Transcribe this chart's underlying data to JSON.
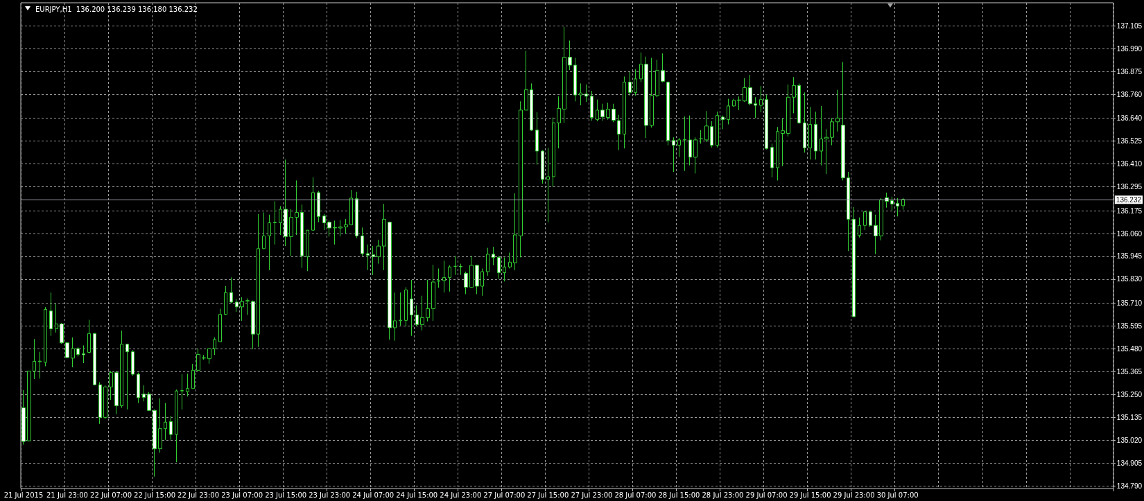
{
  "chart_data": {
    "type": "candlestick",
    "title": "EURJPY,H1  136.200 136.239 136.180 136.232",
    "color": "#32cd32",
    "categories": [
      "21 Jul 2015",
      null,
      null,
      null,
      null,
      null,
      null,
      null,
      "21 Jul 23:00",
      null,
      null,
      null,
      null,
      null,
      null,
      null,
      "22 Jul 07:00",
      null,
      null,
      null,
      null,
      null,
      null,
      null,
      "22 Jul 15:00",
      null,
      null,
      null,
      null,
      null,
      null,
      null,
      "22 Jul 23:00",
      null,
      null,
      null,
      null,
      null,
      null,
      null,
      "23 Jul 07:00",
      null,
      null,
      null,
      null,
      null,
      null,
      null,
      "23 Jul 15:00",
      null,
      null,
      null,
      null,
      null,
      null,
      null,
      "23 Jul 23:00",
      null,
      null,
      null,
      null,
      null,
      null,
      null,
      "24 Jul 07:00",
      null,
      null,
      null,
      null,
      null,
      null,
      null,
      "24 Jul 15:00",
      null,
      null,
      null,
      null,
      null,
      null,
      null,
      "24 Jul 23:00",
      null,
      null,
      null,
      null,
      null,
      null,
      null,
      "27 Jul 07:00",
      null,
      null,
      null,
      null,
      null,
      null,
      null,
      "27 Jul 15:00",
      null,
      null,
      null,
      null,
      null,
      null,
      null,
      "27 Jul 23:00",
      null,
      null,
      null,
      null,
      null,
      null,
      null,
      "28 Jul 07:00",
      null,
      null,
      null,
      null,
      null,
      null,
      null,
      "28 Jul 15:00",
      null,
      null,
      null,
      null,
      null,
      null,
      null,
      "28 Jul 23:00",
      null,
      null,
      null,
      null,
      null,
      null,
      null,
      "29 Jul 07:00",
      null,
      null,
      null,
      null,
      null,
      null,
      null,
      "29 Jul 15:00",
      null,
      null,
      null,
      null,
      null,
      null,
      null,
      "29 Jul 23:00",
      null,
      null,
      null,
      null,
      null,
      null,
      null,
      "30 Jul 07:00",
      null,
      null,
      null,
      null,
      null,
      null,
      null,
      null,
      null,
      null,
      null,
      null,
      null,
      null,
      null,
      null,
      null,
      null,
      null,
      null,
      null,
      null,
      null,
      null,
      null,
      null,
      null,
      null,
      null,
      null,
      null,
      null,
      null,
      null,
      null,
      null,
      null,
      null,
      null
    ],
    "ohlc": [
      [
        135.183,
        135.272,
        134.998,
        135.014
      ],
      [
        135.017,
        135.37,
        135.015,
        135.368
      ],
      [
        135.368,
        135.529,
        135.328,
        135.417
      ],
      [
        135.415,
        135.465,
        135.33,
        135.418
      ],
      [
        135.412,
        135.69,
        135.392,
        135.678
      ],
      [
        135.67,
        135.763,
        135.545,
        135.581
      ],
      [
        135.581,
        135.707,
        135.562,
        135.605
      ],
      [
        135.605,
        135.61,
        135.505,
        135.51
      ],
      [
        135.51,
        135.513,
        135.433,
        135.436
      ],
      [
        135.433,
        135.537,
        135.387,
        135.481
      ],
      [
        135.481,
        135.489,
        135.441,
        135.452
      ],
      [
        135.455,
        135.497,
        135.408,
        135.45
      ],
      [
        135.462,
        135.626,
        135.457,
        135.557
      ],
      [
        135.557,
        135.56,
        135.296,
        135.299
      ],
      [
        135.299,
        135.312,
        135.102,
        135.135
      ],
      [
        135.135,
        135.296,
        135.127,
        135.288
      ],
      [
        135.288,
        135.368,
        135.223,
        135.36
      ],
      [
        135.36,
        135.368,
        135.151,
        135.194
      ],
      [
        135.194,
        135.572,
        135.183,
        135.503
      ],
      [
        135.503,
        135.505,
        135.175,
        135.465
      ],
      [
        135.465,
        135.473,
        135.344,
        135.352
      ],
      [
        135.352,
        135.36,
        135.207,
        135.234
      ],
      [
        135.252,
        135.296,
        135.215,
        135.236
      ],
      [
        135.252,
        135.263,
        135.167,
        135.17
      ],
      [
        135.17,
        135.175,
        134.837,
        134.977
      ],
      [
        134.977,
        135.231,
        134.957,
        135.078
      ],
      [
        135.078,
        135.207,
        135.022,
        135.111
      ],
      [
        135.114,
        135.143,
        135.022,
        135.049
      ],
      [
        135.049,
        135.275,
        134.909,
        135.268
      ],
      [
        135.268,
        135.352,
        135.175,
        135.27
      ],
      [
        135.264,
        135.355,
        135.24,
        135.28
      ],
      [
        135.28,
        135.404,
        135.28,
        135.372
      ],
      [
        135.372,
        135.481,
        135.368,
        135.452
      ],
      [
        135.435,
        135.449,
        135.425,
        135.433
      ],
      [
        135.43,
        135.484,
        135.405,
        135.481
      ],
      [
        135.481,
        135.537,
        135.449,
        135.526
      ],
      [
        135.516,
        135.682,
        135.513,
        135.653
      ],
      [
        135.653,
        135.795,
        135.65,
        135.763
      ],
      [
        135.763,
        135.839,
        135.71,
        135.715
      ],
      [
        135.715,
        135.731,
        135.666,
        135.691
      ],
      [
        135.691,
        135.739,
        135.621,
        135.718
      ],
      [
        135.72,
        135.734,
        135.65,
        135.723
      ],
      [
        135.718,
        135.723,
        135.478,
        135.554
      ],
      [
        135.554,
        136.158,
        135.489,
        135.984
      ],
      [
        135.984,
        136.166,
        135.981,
        136.048
      ],
      [
        136.048,
        136.155,
        135.876,
        136.114
      ],
      [
        136.114,
        136.222,
        136.005,
        136.116
      ],
      [
        136.114,
        136.198,
        136.053,
        136.182
      ],
      [
        136.182,
        136.432,
        135.997,
        136.045
      ],
      [
        136.045,
        136.182,
        135.948,
        136.142
      ],
      [
        136.142,
        136.327,
        136.053,
        136.166
      ],
      [
        136.166,
        136.206,
        135.887,
        135.948
      ],
      [
        135.944,
        136.077,
        135.871,
        136.077
      ],
      [
        136.077,
        136.343,
        136.074,
        136.266
      ],
      [
        136.266,
        136.274,
        136.117,
        136.145
      ],
      [
        136.148,
        136.158,
        136.077,
        136.114
      ],
      [
        136.117,
        136.125,
        136.045,
        136.088
      ],
      [
        136.09,
        136.125,
        136.005,
        136.088
      ],
      [
        136.088,
        136.128,
        136.045,
        136.093
      ],
      [
        136.093,
        136.133,
        136.061,
        136.104
      ],
      [
        136.104,
        136.279,
        136.101,
        136.238
      ],
      [
        136.235,
        136.27,
        136.037,
        136.048
      ],
      [
        136.048,
        136.09,
        135.948,
        135.959
      ],
      [
        135.959,
        136.005,
        135.876,
        135.951
      ],
      [
        135.953,
        135.997,
        135.851,
        135.943
      ],
      [
        135.943,
        136.029,
        135.908,
        135.997
      ],
      [
        135.997,
        136.209,
        135.876,
        136.132
      ],
      [
        136.117,
        136.12,
        135.526,
        135.586
      ],
      [
        135.586,
        135.763,
        135.521,
        135.621
      ],
      [
        135.621,
        135.763,
        135.597,
        135.624
      ],
      [
        135.623,
        135.79,
        135.594,
        135.776
      ],
      [
        135.731,
        135.827,
        135.545,
        135.65
      ],
      [
        135.65,
        135.699,
        135.594,
        135.602
      ],
      [
        135.602,
        135.747,
        135.573,
        135.637
      ],
      [
        135.637,
        135.827,
        135.618,
        135.682
      ],
      [
        135.682,
        135.903,
        135.621,
        135.816
      ],
      [
        135.82,
        135.884,
        135.787,
        135.823
      ],
      [
        135.823,
        135.924,
        135.763,
        135.839
      ],
      [
        135.839,
        135.9,
        135.768,
        135.892
      ],
      [
        135.895,
        135.948,
        135.852,
        135.895
      ],
      [
        135.895,
        135.908,
        135.852,
        135.893
      ],
      [
        135.86,
        135.868,
        135.755,
        135.79
      ],
      [
        135.79,
        135.948,
        135.787,
        135.9
      ],
      [
        135.9,
        135.903,
        135.755,
        135.795
      ],
      [
        135.795,
        135.884,
        135.747,
        135.868
      ],
      [
        135.868,
        135.988,
        135.848,
        135.956
      ],
      [
        135.956,
        135.993,
        135.9,
        135.94
      ],
      [
        135.94,
        135.948,
        135.832,
        135.863
      ],
      [
        135.863,
        135.94,
        135.819,
        135.892
      ],
      [
        135.892,
        135.964,
        135.884,
        135.916
      ],
      [
        135.913,
        136.262,
        135.876,
        136.053
      ],
      [
        136.048,
        136.725,
        135.94,
        136.681
      ],
      [
        136.681,
        136.979,
        136.681,
        136.783
      ],
      [
        136.783,
        136.815,
        136.577,
        136.58
      ],
      [
        136.58,
        136.67,
        136.407,
        136.475
      ],
      [
        136.475,
        136.48,
        136.311,
        136.332
      ],
      [
        136.332,
        136.491,
        136.117,
        136.346
      ],
      [
        136.346,
        136.644,
        136.295,
        136.617
      ],
      [
        136.617,
        136.75,
        136.488,
        136.689
      ],
      [
        136.686,
        137.1,
        136.617,
        136.947
      ],
      [
        136.947,
        137.031,
        136.883,
        136.907
      ],
      [
        136.907,
        136.944,
        136.725,
        136.757
      ],
      [
        136.757,
        136.815,
        136.705,
        136.767
      ],
      [
        136.762,
        136.81,
        136.722,
        136.751
      ],
      [
        136.751,
        136.778,
        136.628,
        136.644
      ],
      [
        136.633,
        136.734,
        136.625,
        136.681
      ],
      [
        136.681,
        136.713,
        136.628,
        136.647
      ],
      [
        136.644,
        136.718,
        136.633,
        136.686
      ],
      [
        136.686,
        136.713,
        136.62,
        136.63
      ],
      [
        136.628,
        136.657,
        136.48,
        136.56
      ],
      [
        136.56,
        136.85,
        136.488,
        136.822
      ],
      [
        136.822,
        136.875,
        136.754,
        136.77
      ],
      [
        136.77,
        136.886,
        136.754,
        136.838
      ],
      [
        136.838,
        136.971,
        136.822,
        136.912
      ],
      [
        136.912,
        136.95,
        136.541,
        136.604
      ],
      [
        136.604,
        136.944,
        136.593,
        136.754
      ],
      [
        136.754,
        136.934,
        136.746,
        136.88
      ],
      [
        136.88,
        136.966,
        136.821,
        136.826
      ],
      [
        136.821,
        136.826,
        136.504,
        136.528
      ],
      [
        136.528,
        136.544,
        136.37,
        136.504
      ],
      [
        136.504,
        136.541,
        136.444,
        136.531
      ],
      [
        136.531,
        136.649,
        136.375,
        136.533
      ],
      [
        136.531,
        136.654,
        136.403,
        136.444
      ],
      [
        136.444,
        136.544,
        136.362,
        136.531
      ],
      [
        136.536,
        136.58,
        136.512,
        136.537
      ],
      [
        136.531,
        136.676,
        136.52,
        136.601
      ],
      [
        136.598,
        136.625,
        136.493,
        136.504
      ],
      [
        136.504,
        136.673,
        136.493,
        136.654
      ],
      [
        136.646,
        136.654,
        136.585,
        136.633
      ],
      [
        136.633,
        136.738,
        136.609,
        136.702
      ],
      [
        136.702,
        136.738,
        136.697,
        136.73
      ],
      [
        136.73,
        136.75,
        136.681,
        136.732
      ],
      [
        136.727,
        136.842,
        136.722,
        136.794
      ],
      [
        136.794,
        136.858,
        136.705,
        136.713
      ],
      [
        136.713,
        136.746,
        136.641,
        136.705
      ],
      [
        136.705,
        136.802,
        136.67,
        136.734
      ],
      [
        136.734,
        136.757,
        136.483,
        136.488
      ],
      [
        136.493,
        136.512,
        136.343,
        136.391
      ],
      [
        136.391,
        136.596,
        136.327,
        136.573
      ],
      [
        136.564,
        136.638,
        136.399,
        136.577
      ],
      [
        136.564,
        136.81,
        136.548,
        136.746
      ],
      [
        136.746,
        136.847,
        136.665,
        136.805
      ],
      [
        136.805,
        136.815,
        136.612,
        136.617
      ],
      [
        136.617,
        136.77,
        136.467,
        136.491
      ],
      [
        136.491,
        136.697,
        136.432,
        136.609
      ],
      [
        136.609,
        136.673,
        136.432,
        136.475
      ],
      [
        136.475,
        136.702,
        136.403,
        136.536
      ],
      [
        136.536,
        136.585,
        136.359,
        136.544
      ],
      [
        136.544,
        136.641,
        136.504,
        136.622
      ],
      [
        136.622,
        136.783,
        136.573,
        136.641
      ],
      [
        136.605,
        136.923,
        136.327,
        136.34
      ],
      [
        136.34,
        136.37,
        135.972,
        136.132
      ],
      [
        136.132,
        136.193,
        135.639,
        135.642
      ],
      [
        136.05,
        136.141,
        136.04,
        136.101
      ],
      [
        136.101,
        136.174,
        136.077,
        136.169
      ],
      [
        136.169,
        136.174,
        136.093,
        136.101
      ],
      [
        136.101,
        136.155,
        135.956,
        136.048
      ],
      [
        136.048,
        136.238,
        136.026,
        136.23
      ],
      [
        136.24,
        136.266,
        136.19,
        136.222
      ],
      [
        136.225,
        136.246,
        136.177,
        136.209
      ],
      [
        136.212,
        136.238,
        136.146,
        136.198
      ],
      [
        136.2,
        136.239,
        136.18,
        136.232
      ],
      null,
      null,
      null,
      null,
      null,
      null,
      null,
      null,
      null,
      null,
      null,
      null,
      null,
      null,
      null,
      null,
      null,
      null,
      null,
      null,
      null,
      null,
      null,
      null,
      null,
      null,
      null,
      null,
      null,
      null,
      null,
      null,
      null,
      null,
      null,
      null,
      null,
      null
    ],
    "ylim": [
      134.777,
      137.221
    ],
    "yticks": [
      {
        "value": 134.79,
        "label": "134.790"
      },
      134.905,
      {
        "value": 135.02,
        "label": "135.020"
      },
      135.135,
      {
        "value": 135.25,
        "label": "135.250"
      },
      135.365,
      {
        "value": 135.48,
        "label": "135.480"
      },
      135.595,
      {
        "value": 135.71,
        "label": "135.710"
      },
      {
        "value": 135.83,
        "label": "135.830"
      },
      135.945,
      {
        "value": 136.06,
        "label": "136.060"
      },
      136.175,
      136.295,
      {
        "value": 136.41,
        "label": "136.410"
      },
      136.525,
      {
        "value": 136.64,
        "label": "136.640"
      },
      {
        "value": 136.76,
        "label": "136.760"
      },
      136.875,
      {
        "value": 136.99,
        "label": "136.990"
      },
      137.105
    ],
    "ref_lines": [
      {
        "axis": "y",
        "value": 136.232,
        "label": "136.232",
        "color": "#a0a0b0"
      }
    ],
    "grid": true
  }
}
